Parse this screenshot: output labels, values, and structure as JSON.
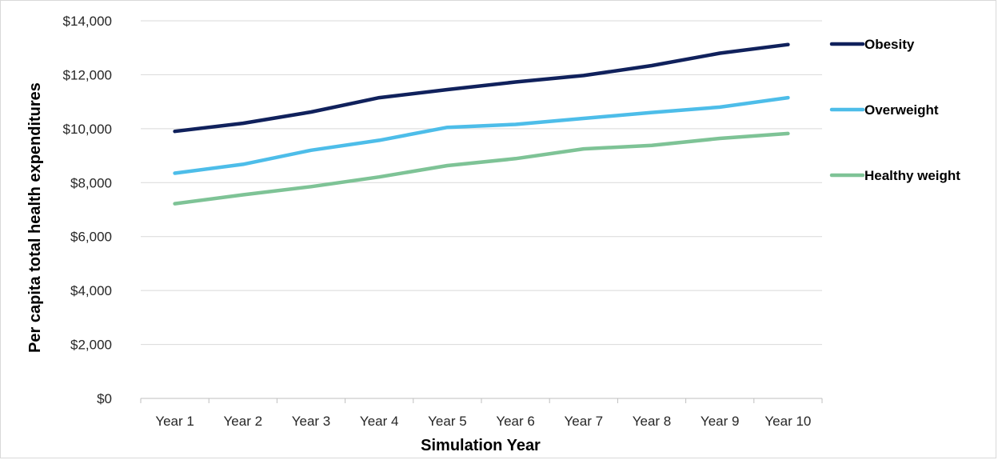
{
  "chart_data": {
    "type": "line",
    "title": "",
    "xlabel": "Simulation Year",
    "ylabel": "Per capita total health expenditures",
    "categories": [
      "Year 1",
      "Year 2",
      "Year 3",
      "Year 4",
      "Year 5",
      "Year 6",
      "Year 7",
      "Year 8",
      "Year 9",
      "Year 10"
    ],
    "ylim": [
      0,
      14000
    ],
    "yticks": [
      0,
      2000,
      4000,
      6000,
      8000,
      10000,
      12000,
      14000
    ],
    "ytick_labels": [
      "$0",
      "$2,000",
      "$4,000",
      "$6,000",
      "$8,000",
      "$10,000",
      "$12,000",
      "$14,000"
    ],
    "grid": true,
    "legend_position": "right",
    "series": [
      {
        "name": "Obesity",
        "color": "#10215c",
        "values": [
          9900,
          10200,
          10620,
          11150,
          11450,
          11730,
          11970,
          12340,
          12800,
          13120
        ]
      },
      {
        "name": "Overweight",
        "color": "#4dbde9",
        "values": [
          8350,
          8680,
          9200,
          9570,
          10050,
          10160,
          10380,
          10600,
          10800,
          11150
        ]
      },
      {
        "name": "Healthy weight",
        "color": "#7ec396",
        "values": [
          7220,
          7550,
          7850,
          8210,
          8630,
          8890,
          9250,
          9380,
          9640,
          9820
        ]
      }
    ]
  }
}
